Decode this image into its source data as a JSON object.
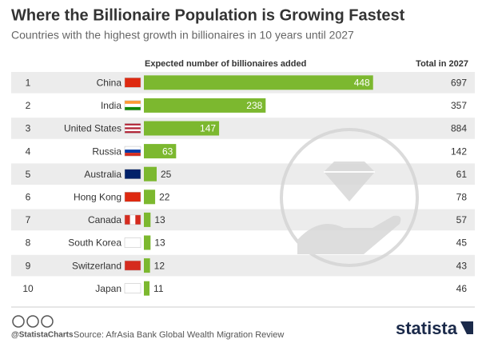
{
  "chart_data": {
    "type": "bar",
    "title": "Where the Billionaire Population is Growing Fastest",
    "subtitle": "Countries with the highest growth in billionaires in 10 years until 2027",
    "value_header": "Expected number of billionaires added",
    "total_header": "Total in 2027",
    "ranks": [
      1,
      2,
      3,
      4,
      5,
      6,
      7,
      8,
      9,
      10
    ],
    "categories": [
      "China",
      "India",
      "United States",
      "Russia",
      "Australia",
      "Hong Kong",
      "Canada",
      "South Korea",
      "Switzerland",
      "Japan"
    ],
    "values": [
      448,
      238,
      147,
      63,
      25,
      22,
      13,
      13,
      12,
      11
    ],
    "totals": [
      697,
      357,
      884,
      142,
      61,
      78,
      57,
      45,
      43,
      46
    ],
    "color": "#7cb82f",
    "source": "Source: AfrAsia Bank Global Wealth Migration Review",
    "handle": "@StatistaCharts",
    "brand": "statista"
  }
}
